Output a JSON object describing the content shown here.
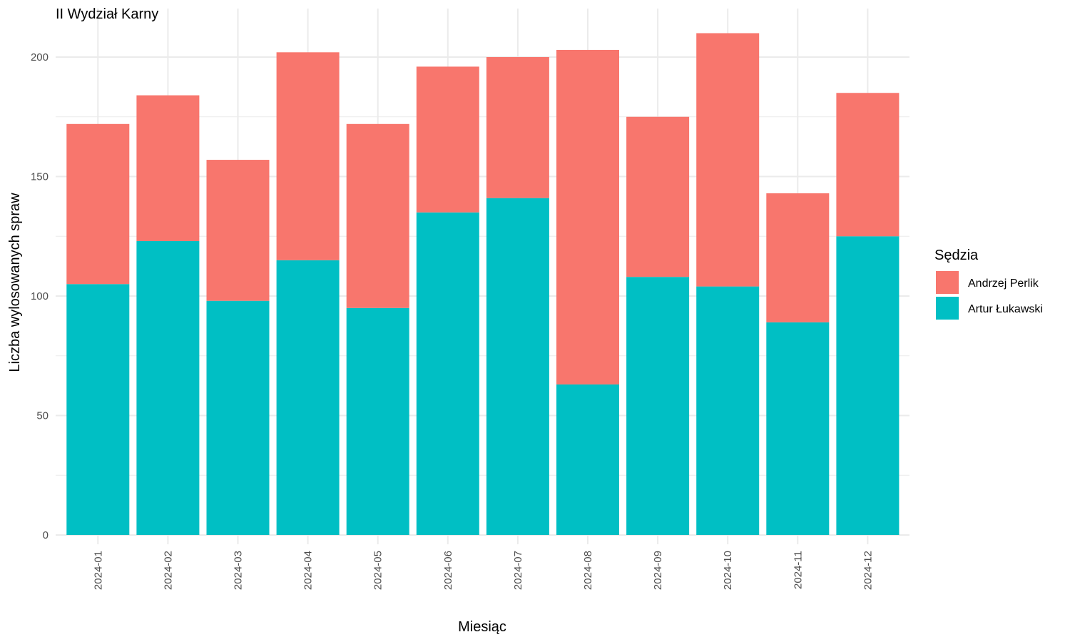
{
  "chart_data": {
    "type": "bar",
    "stacked": true,
    "title": "II Wydział Karny",
    "xlabel": "Miesiąc",
    "ylabel": "Liczba wylosowanych spraw",
    "categories": [
      "2024-01",
      "2024-02",
      "2024-03",
      "2024-04",
      "2024-05",
      "2024-06",
      "2024-07",
      "2024-08",
      "2024-09",
      "2024-10",
      "2024-11",
      "2024-12"
    ],
    "series": [
      {
        "name": "Artur Łukawski",
        "color": "#00BFC4",
        "values": [
          105,
          123,
          98,
          115,
          95,
          135,
          141,
          63,
          108,
          104,
          89,
          125
        ]
      },
      {
        "name": "Andrzej Perlik",
        "color": "#F8766D",
        "values": [
          67,
          61,
          59,
          87,
          77,
          61,
          59,
          140,
          67,
          106,
          54,
          60
        ]
      }
    ],
    "ylim": [
      0,
      220
    ],
    "yticks": [
      0,
      50,
      100,
      150,
      200
    ],
    "grid": true,
    "legend": {
      "title": "Sędzia",
      "position": "right",
      "order": [
        "Andrzej Perlik",
        "Artur Łukawski"
      ]
    }
  }
}
